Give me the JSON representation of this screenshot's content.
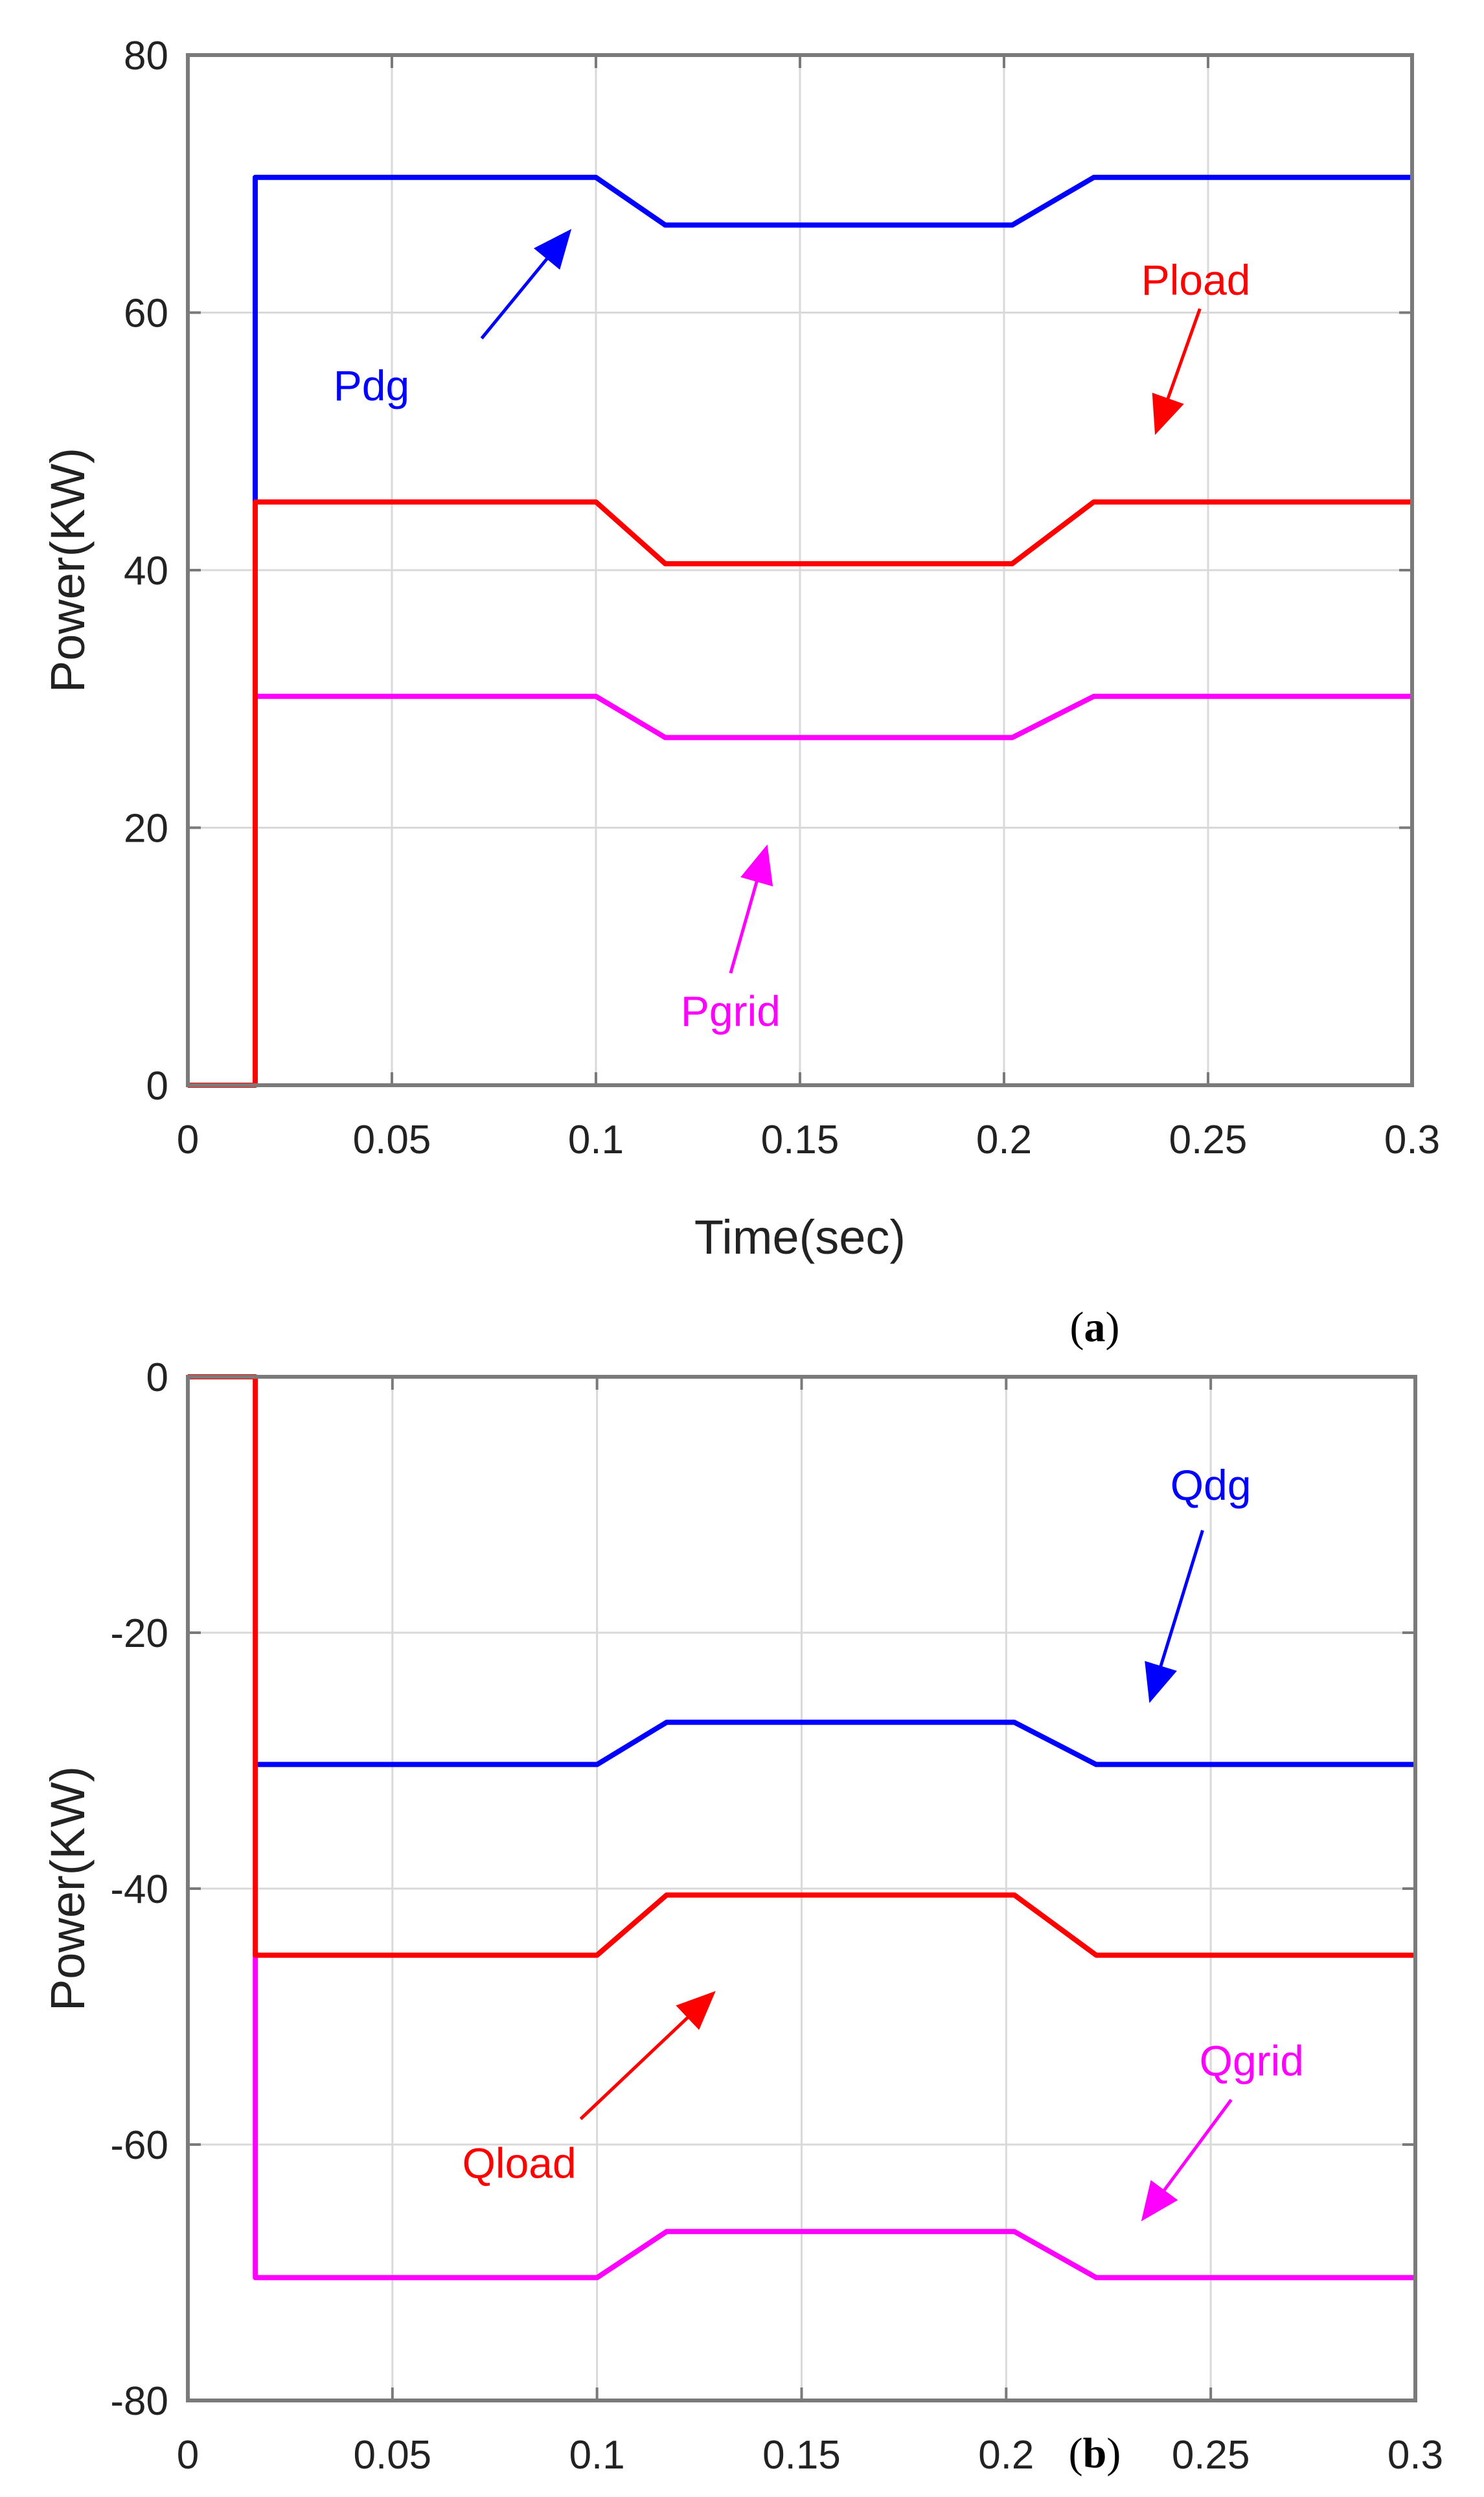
{
  "chart_data": [
    {
      "type": "line",
      "panel_label": "a",
      "xlabel": "Time(sec)",
      "ylabel": "Power(KW)",
      "xlim": [
        0,
        0.3
      ],
      "ylim": [
        0,
        80
      ],
      "xticks": [
        "0",
        "0.05",
        "0.1",
        "0.15",
        "0.2",
        "0.25",
        "0.3"
      ],
      "yticks": [
        "0",
        "20",
        "40",
        "60",
        "80"
      ],
      "grid": true,
      "series": [
        {
          "name": "Pdg",
          "color": "#0000ff",
          "x": [
            0.0165,
            0.0165,
            0.1,
            0.117,
            0.202,
            0.222,
            0.3
          ],
          "y": [
            45,
            70.5,
            70.5,
            66.8,
            66.8,
            70.5,
            70.5
          ]
        },
        {
          "name": "Pgrid",
          "color": "#ff00ff",
          "x": [
            0.0165,
            0.0165,
            0.1,
            0.117,
            0.202,
            0.222,
            0.3
          ],
          "y": [
            30,
            30.2,
            30.2,
            27,
            27,
            30.2,
            30.2
          ]
        },
        {
          "name": "Pload",
          "color": "#ff0000",
          "x": [
            0,
            0.0165,
            0.0165,
            0.1,
            0.117,
            0.202,
            0.222,
            0.3
          ],
          "y": [
            0,
            0,
            45.3,
            45.3,
            40.5,
            40.5,
            45.3,
            45.3
          ]
        }
      ],
      "annotations": [
        {
          "text": "Pdg",
          "color": "#0000ff",
          "at": [
            0.045,
            54.3
          ],
          "arrow_from": [
            0.072,
            58
          ],
          "arrow_to": [
            0.094,
            66.5
          ]
        },
        {
          "text": "Pload",
          "color": "#ff0000",
          "at": [
            0.247,
            62.5
          ],
          "arrow_from": [
            0.248,
            60.3
          ],
          "arrow_to": [
            0.237,
            50.5
          ]
        },
        {
          "text": "Pgrid",
          "color": "#ff00ff",
          "at": [
            0.133,
            5.7
          ],
          "arrow_from": [
            0.133,
            8.7
          ],
          "arrow_to": [
            0.142,
            18.7
          ]
        }
      ]
    },
    {
      "type": "line",
      "panel_label": "b",
      "xlabel": "Time(sec)",
      "ylabel": "Power(KW)",
      "xlim": [
        0,
        0.3
      ],
      "ylim": [
        -80,
        0
      ],
      "xticks": [
        "0",
        "0.05",
        "0.1",
        "0.15",
        "0.2",
        "0.25",
        "0.3"
      ],
      "yticks": [
        "0",
        "-20",
        "-40",
        "-60",
        "-80"
      ],
      "grid": true,
      "series": [
        {
          "name": "Qdg",
          "color": "#0000ff",
          "x": [
            0.0165,
            0.1,
            0.117,
            0.202,
            0.222,
            0.3
          ],
          "y": [
            -30.3,
            -30.3,
            -27,
            -27,
            -30.3,
            -30.3
          ]
        },
        {
          "name": "Qgrid",
          "color": "#ff00ff",
          "x": [
            0.0165,
            0.0165,
            0.1,
            0.117,
            0.202,
            0.222,
            0.3
          ],
          "y": [
            -45,
            -70.4,
            -70.4,
            -66.8,
            -66.8,
            -70.4,
            -70.4
          ]
        },
        {
          "name": "Qload",
          "color": "#ff0000",
          "x": [
            0,
            0.0165,
            0.0165,
            0.1,
            0.117,
            0.202,
            0.222,
            0.3
          ],
          "y": [
            0,
            0,
            -45.2,
            -45.2,
            -40.5,
            -40.5,
            -45.2,
            -45.2
          ]
        }
      ],
      "annotations": [
        {
          "text": "Qdg",
          "color": "#0000ff",
          "at": [
            0.25,
            -8.5
          ],
          "arrow_from": [
            0.248,
            -12
          ],
          "arrow_to": [
            0.235,
            -25.5
          ]
        },
        {
          "text": "Qload",
          "color": "#ff0000",
          "at": [
            0.081,
            -61.5
          ],
          "arrow_from": [
            0.096,
            -58
          ],
          "arrow_to": [
            0.129,
            -48
          ]
        },
        {
          "text": "Qgrid",
          "color": "#ff00ff",
          "at": [
            0.26,
            -53.5
          ],
          "arrow_from": [
            0.255,
            -56.5
          ],
          "arrow_to": [
            0.233,
            -66
          ]
        }
      ]
    }
  ]
}
